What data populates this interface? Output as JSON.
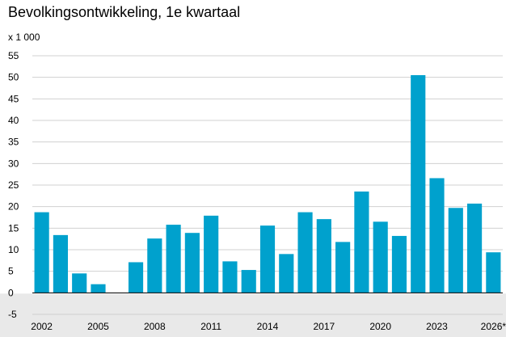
{
  "chart_data": {
    "type": "bar",
    "title": "Bevolkingsontwikkeling, 1e kwartaal",
    "unit_label": "x 1 000",
    "xlabel": "",
    "ylabel": "",
    "categories": [
      "2002",
      "2003",
      "2004",
      "2005",
      "2006",
      "2007",
      "2008",
      "2009",
      "2010",
      "2011",
      "2012",
      "2013",
      "2014",
      "2015",
      "2016",
      "2017",
      "2018",
      "2019",
      "2020",
      "2021",
      "2022",
      "2023",
      "2024",
      "2025",
      "2026*"
    ],
    "values": [
      18.7,
      13.4,
      4.5,
      2.0,
      0.0,
      7.1,
      12.6,
      15.8,
      13.9,
      17.9,
      7.3,
      5.3,
      15.6,
      9.0,
      18.7,
      17.1,
      11.8,
      23.5,
      16.5,
      13.2,
      50.5,
      26.6,
      19.7,
      20.7,
      9.4
    ],
    "ylim": [
      -5,
      55
    ],
    "yticks": [
      -5,
      0,
      5,
      10,
      15,
      20,
      25,
      30,
      35,
      40,
      45,
      50,
      55
    ],
    "xtick_labels": [
      "2002",
      "2005",
      "2008",
      "2011",
      "2014",
      "2017",
      "2020",
      "2023",
      "2026*"
    ],
    "grid": true,
    "legend": "none",
    "bar_color": "#00a1cd",
    "grid_color": "#d0d0d0",
    "axis_band_color": "#e9e9e9"
  }
}
